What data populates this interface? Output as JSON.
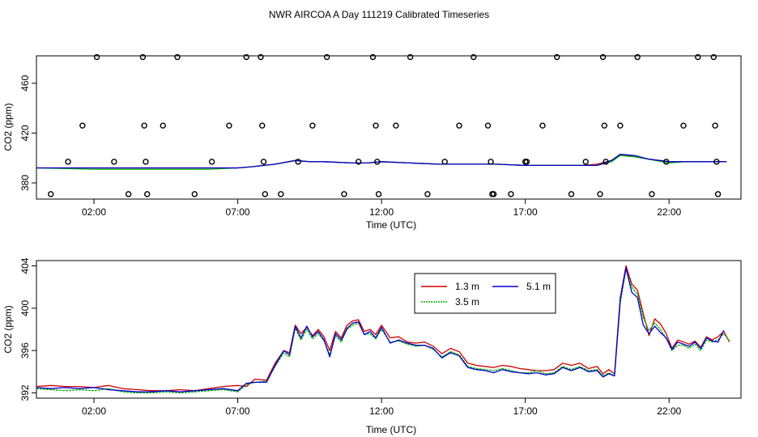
{
  "figure": {
    "title": "NWR AIRCOA A  Day 111219  Calibrated Timeseries"
  },
  "chart_data": [
    {
      "type": "line",
      "xlabel": "Time (UTC)",
      "ylabel": "CO2 (ppm)",
      "xlim": [
        0,
        24.5
      ],
      "ylim": [
        367,
        482
      ],
      "x_tick_values": [
        2,
        7,
        12,
        17,
        22
      ],
      "x_tick_labels": [
        "02:00",
        "07:00",
        "12:00",
        "17:00",
        "22:00"
      ],
      "y_ticks": [
        380,
        420,
        460
      ],
      "y_tick_labels": [
        "380",
        "420",
        "460"
      ],
      "grid": false,
      "legend": null,
      "series": [
        {
          "color": "#d00000",
          "x": [
            0,
            2,
            4,
            6,
            7,
            7.5,
            8.3,
            9,
            9.5,
            10,
            11,
            11.5,
            12,
            13,
            14,
            15,
            16,
            17,
            18,
            19,
            19.5,
            20,
            20.3,
            20.8,
            21.3,
            22,
            22.5,
            23,
            23.5,
            24
          ],
          "y": [
            392,
            392,
            392,
            392,
            392,
            393,
            395,
            398,
            397,
            397,
            396,
            396,
            397,
            396,
            395,
            395,
            395,
            394,
            394,
            394,
            395,
            398,
            403,
            401,
            399,
            397,
            397,
            397,
            397,
            397
          ]
        },
        {
          "color": "#00b000",
          "x": [
            0,
            2,
            4,
            6,
            7,
            7.5,
            8.3,
            9,
            9.5,
            10,
            11,
            11.5,
            12,
            13,
            14,
            15,
            16,
            17,
            18,
            19,
            19.5,
            20,
            20.3,
            20.8,
            21.3,
            22,
            22.5,
            23,
            23.5,
            24
          ],
          "y": [
            392,
            391,
            391,
            391,
            392,
            393,
            395,
            398,
            397,
            397,
            396,
            396,
            397,
            396,
            395,
            395,
            395,
            394,
            394,
            394,
            394,
            397,
            402,
            401,
            399,
            396,
            397,
            397,
            397,
            397
          ]
        },
        {
          "color": "#0000d0",
          "x": [
            0,
            2,
            4,
            6,
            7,
            7.5,
            8.3,
            9,
            9.5,
            10,
            11,
            11.5,
            12,
            13,
            14,
            15,
            16,
            17,
            18,
            19,
            19.5,
            20,
            20.3,
            20.8,
            21.3,
            22,
            22.5,
            23,
            23.5,
            24
          ],
          "y": [
            392,
            392,
            392,
            392,
            392,
            393,
            395,
            398,
            397,
            397,
            396,
            396,
            397,
            396,
            395,
            395,
            395,
            394,
            394,
            394,
            394,
            398,
            403,
            402,
            399,
            397,
            397,
            397,
            397,
            397
          ]
        }
      ],
      "points": {
        "x": [
          0.5,
          1.1,
          1.6,
          2.1,
          2.7,
          3.2,
          3.7,
          3.75,
          3.8,
          3.85,
          4.4,
          4.9,
          5.5,
          6.1,
          6.7,
          7.3,
          7.8,
          7.85,
          7.9,
          7.95,
          8.5,
          9.1,
          9.6,
          10.1,
          10.7,
          11.2,
          11.7,
          11.8,
          11.85,
          11.9,
          12.5,
          13.0,
          13.6,
          14.2,
          14.7,
          15.2,
          15.7,
          15.8,
          15.85,
          15.9,
          16.5,
          17.0,
          17.05,
          17.6,
          18.1,
          18.6,
          19.1,
          19.6,
          19.7,
          19.75,
          19.8,
          20.3,
          20.9,
          21.4,
          21.9,
          22.5,
          23.0,
          23.55,
          23.6,
          23.65,
          23.7
        ],
        "y": [
          371,
          397,
          426,
          481,
          397,
          371,
          481,
          426,
          397,
          371,
          426,
          481,
          371,
          397,
          426,
          481,
          481,
          426,
          397,
          371,
          371,
          397,
          426,
          481,
          371,
          397,
          481,
          426,
          397,
          371,
          426,
          481,
          371,
          397,
          426,
          481,
          426,
          397,
          371,
          371,
          371,
          397,
          397,
          426,
          481,
          371,
          397,
          371,
          481,
          426,
          397,
          426,
          481,
          371,
          397,
          426,
          481,
          481,
          426,
          397,
          371
        ]
      }
    },
    {
      "type": "line",
      "xlabel": "Time (UTC)",
      "ylabel": "CO2 (ppm)",
      "xlim": [
        0,
        24.5
      ],
      "ylim": [
        391.5,
        404.5
      ],
      "x_tick_values": [
        2,
        7,
        12,
        17,
        22
      ],
      "x_tick_labels": [
        "02:00",
        "07:00",
        "12:00",
        "17:00",
        "22:00"
      ],
      "y_ticks": [
        392,
        396,
        400,
        404
      ],
      "y_tick_labels": [
        "392",
        "396",
        "400",
        "404"
      ],
      "grid": false,
      "legend": "top-right",
      "series": [
        {
          "name": "1.3 m",
          "color": "#d00000",
          "x": [
            0,
            0.5,
            1,
            1.5,
            2,
            2.5,
            3,
            3.5,
            4,
            4.5,
            5,
            5.5,
            6,
            6.5,
            7,
            7.3,
            7.6,
            8,
            8.3,
            8.6,
            8.8,
            9,
            9.2,
            9.4,
            9.6,
            9.8,
            10,
            10.2,
            10.4,
            10.6,
            10.8,
            11,
            11.2,
            11.4,
            11.6,
            11.8,
            12,
            12.3,
            12.6,
            12.9,
            13.2,
            13.5,
            13.8,
            14.1,
            14.4,
            14.7,
            15,
            15.3,
            15.6,
            15.9,
            16.2,
            16.5,
            16.8,
            17.1,
            17.4,
            17.7,
            18,
            18.3,
            18.6,
            18.9,
            19.2,
            19.5,
            19.7,
            19.9,
            20.1,
            20.3,
            20.5,
            20.7,
            20.9,
            21.1,
            21.3,
            21.5,
            21.7,
            21.9,
            22.1,
            22.3,
            22.5,
            22.7,
            22.9,
            23.1,
            23.3,
            23.5,
            23.7,
            23.9,
            24.1
          ],
          "y": [
            392.6,
            392.7,
            392.6,
            392.6,
            392.5,
            392.7,
            392.4,
            392.3,
            392.2,
            392.2,
            392.3,
            392.2,
            392.4,
            392.6,
            392.7,
            392.6,
            393.3,
            393.2,
            394.8,
            396.0,
            395.8,
            398.4,
            397.6,
            398.2,
            397.4,
            398.0,
            397.3,
            396.0,
            397.8,
            397.2,
            398.4,
            398.8,
            398.9,
            397.8,
            398.0,
            397.5,
            398.4,
            397.2,
            397.3,
            396.8,
            396.7,
            396.8,
            396.4,
            395.7,
            396.2,
            395.9,
            394.8,
            394.6,
            394.5,
            394.4,
            394.6,
            394.5,
            394.3,
            394.2,
            394.1,
            394.1,
            394.2,
            394.8,
            394.6,
            394.8,
            394.3,
            394.5,
            393.8,
            394.2,
            393.8,
            401.0,
            404.0,
            402.3,
            401.7,
            399.5,
            397.4,
            399.0,
            398.5,
            397.6,
            396.2,
            397.0,
            396.8,
            396.6,
            396.9,
            396.3,
            397.3,
            397.0,
            397.3,
            397.8,
            396.8
          ]
        },
        {
          "name": "3.5 m",
          "color": "#00b000",
          "x": [
            0,
            0.5,
            1,
            1.5,
            2,
            2.5,
            3,
            3.5,
            4,
            4.5,
            5,
            5.5,
            6,
            6.5,
            7,
            7.3,
            7.6,
            8,
            8.3,
            8.6,
            8.8,
            9,
            9.2,
            9.4,
            9.6,
            9.8,
            10,
            10.2,
            10.4,
            10.6,
            10.8,
            11,
            11.2,
            11.4,
            11.6,
            11.8,
            12,
            12.3,
            12.6,
            12.9,
            13.2,
            13.5,
            13.8,
            14.1,
            14.4,
            14.7,
            15,
            15.3,
            15.6,
            15.9,
            16.2,
            16.5,
            16.8,
            17.1,
            17.4,
            17.7,
            18,
            18.3,
            18.6,
            18.9,
            19.2,
            19.5,
            19.7,
            19.9,
            20.1,
            20.3,
            20.5,
            20.7,
            20.9,
            21.1,
            21.3,
            21.5,
            21.7,
            21.9,
            22.1,
            22.3,
            22.5,
            22.7,
            22.9,
            23.1,
            23.3,
            23.5,
            23.7,
            23.9,
            24.1
          ],
          "y": [
            392.4,
            392.3,
            392.2,
            392.3,
            392.2,
            392.4,
            392.1,
            392.0,
            392.0,
            392.1,
            392.0,
            392.1,
            392.2,
            392.3,
            392.1,
            392.8,
            393.0,
            393.1,
            394.5,
            395.8,
            395.4,
            398.1,
            397.0,
            398.0,
            397.1,
            397.6,
            396.9,
            395.6,
            397.4,
            396.8,
            398.0,
            398.4,
            398.6,
            397.5,
            397.6,
            397.1,
            398.0,
            396.8,
            396.9,
            396.6,
            396.4,
            396.5,
            396.1,
            395.4,
            395.9,
            395.6,
            394.5,
            394.3,
            394.2,
            394.1,
            394.3,
            394.1,
            393.9,
            393.9,
            394.1,
            393.8,
            393.9,
            394.5,
            394.2,
            394.5,
            394.1,
            394.2,
            393.6,
            393.9,
            393.6,
            400.5,
            403.7,
            402.0,
            401.3,
            399.1,
            397.9,
            398.6,
            398.0,
            397.1,
            396.0,
            396.5,
            396.5,
            396.2,
            396.6,
            396.0,
            397.0,
            396.8,
            397.0,
            397.6,
            396.9
          ]
        },
        {
          "name": "5.1 m",
          "color": "#0000d0",
          "x": [
            0,
            0.5,
            1,
            1.5,
            2,
            2.5,
            3,
            3.5,
            4,
            4.5,
            5,
            5.5,
            6,
            6.5,
            7,
            7.3,
            7.6,
            8,
            8.3,
            8.6,
            8.8,
            9,
            9.2,
            9.4,
            9.6,
            9.8,
            10,
            10.2,
            10.4,
            10.6,
            10.8,
            11,
            11.2,
            11.4,
            11.6,
            11.8,
            12,
            12.3,
            12.6,
            12.9,
            13.2,
            13.5,
            13.8,
            14.1,
            14.4,
            14.7,
            15,
            15.3,
            15.6,
            15.9,
            16.2,
            16.5,
            16.8,
            17.1,
            17.4,
            17.7,
            18,
            18.3,
            18.6,
            18.9,
            19.2,
            19.5,
            19.7,
            19.9,
            20.1,
            20.3,
            20.5,
            20.7,
            20.9,
            21.1,
            21.3,
            21.5,
            21.7,
            21.9,
            22.1,
            22.3,
            22.5,
            22.7,
            22.9,
            23.1,
            23.3,
            23.5,
            23.7,
            23.9
          ],
          "y": [
            392.5,
            392.4,
            392.5,
            392.4,
            392.5,
            392.3,
            392.2,
            392.1,
            392.1,
            392.2,
            392.1,
            392.2,
            392.3,
            392.4,
            392.2,
            392.9,
            393.0,
            393.0,
            394.6,
            396.0,
            395.6,
            398.3,
            397.2,
            398.3,
            397.3,
            397.8,
            397.0,
            395.4,
            397.6,
            397.0,
            398.1,
            398.6,
            398.7,
            397.5,
            397.8,
            397.2,
            398.2,
            396.7,
            397.0,
            396.7,
            396.5,
            396.5,
            396.2,
            395.3,
            395.8,
            395.5,
            394.4,
            394.2,
            394.1,
            393.9,
            394.2,
            394.0,
            393.9,
            393.8,
            393.9,
            393.7,
            393.8,
            394.4,
            394.1,
            394.4,
            394.0,
            394.1,
            393.5,
            393.8,
            393.6,
            400.8,
            403.8,
            401.5,
            401.0,
            398.4,
            397.6,
            398.3,
            397.7,
            397.2,
            396.1,
            396.8,
            396.6,
            396.4,
            396.8,
            396.2,
            397.2,
            396.9,
            396.8,
            397.9
          ]
        }
      ]
    }
  ]
}
